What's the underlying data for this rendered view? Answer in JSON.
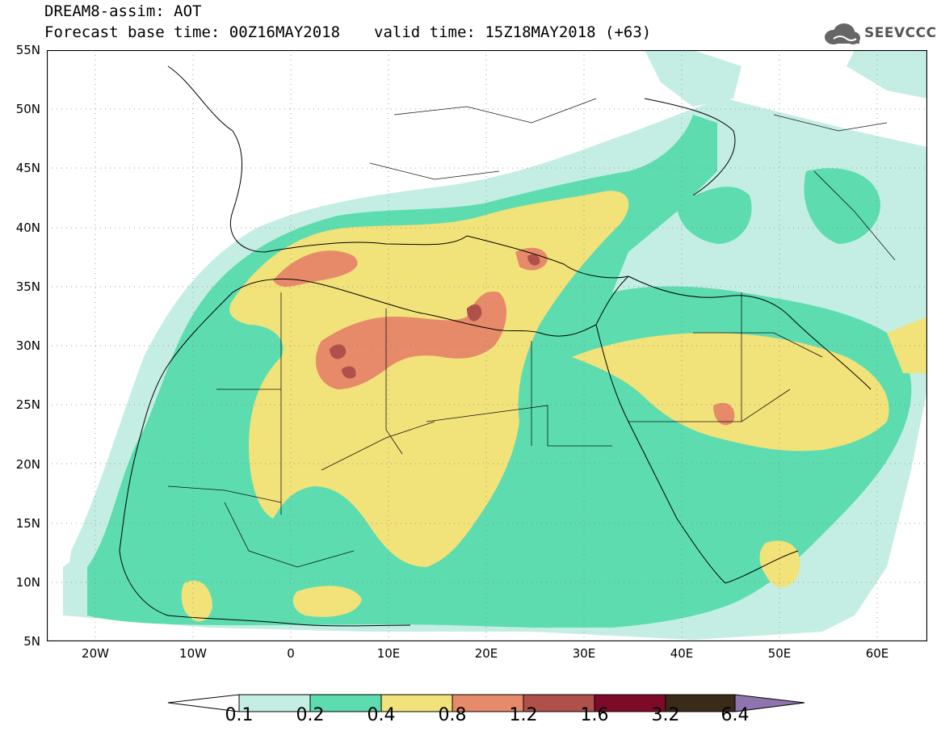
{
  "title": {
    "line1": "DREAM8-assim: AOT",
    "base_time": "Forecast base time: 00Z16MAY2018",
    "valid_time": "valid time: 15Z18MAY2018 (+63)"
  },
  "logo": {
    "text": "SEEVCCC",
    "icon": "cloud-logo-icon"
  },
  "map": {
    "projection": "lat-lon",
    "lon_range": [
      -25,
      65
    ],
    "lat_range": [
      5,
      55
    ],
    "grid": true,
    "y_ticks": [
      "55N",
      "50N",
      "45N",
      "40N",
      "35N",
      "30N",
      "25N",
      "20N",
      "15N",
      "10N",
      "5N"
    ],
    "x_ticks": [
      "20W",
      "10W",
      "0",
      "10E",
      "20E",
      "30E",
      "40E",
      "50E",
      "60E"
    ]
  },
  "colorbar": {
    "labels": [
      "0.1",
      "0.2",
      "0.4",
      "0.8",
      "1.2",
      "1.6",
      "3.2",
      "6.4"
    ],
    "colors": {
      "under": "#ffffff",
      "c1": "#c4eee4",
      "c2": "#5ddcb0",
      "c3": "#f2e27a",
      "c4": "#e68a6a",
      "c5": "#b0504a",
      "c6": "#7e0a2a",
      "c7": "#3a2a18",
      "over": "#9074b0"
    }
  }
}
